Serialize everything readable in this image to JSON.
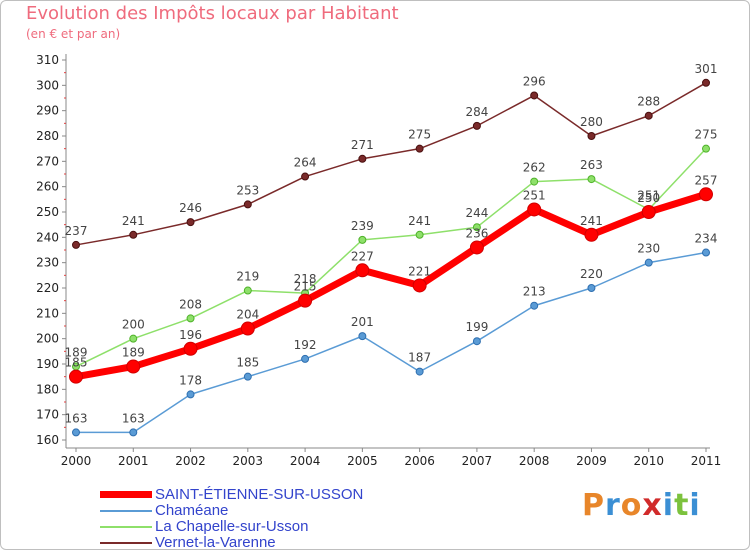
{
  "title": "Evolution des Impôts locaux par Habitant",
  "subtitle": "(en € et par an)",
  "logo": {
    "text": "Proxiti",
    "colors": [
      "#e8862a",
      "#3b8fd4",
      "#e8862a",
      "#d12b2b",
      "#3b8fd4",
      "#7cc23d",
      "#3b8fd4"
    ]
  },
  "chart_data": {
    "type": "line",
    "x": [
      2000,
      2001,
      2002,
      2003,
      2004,
      2005,
      2006,
      2007,
      2008,
      2009,
      2010,
      2011
    ],
    "ylim": [
      160,
      310
    ],
    "yticks": [
      160,
      170,
      180,
      190,
      200,
      210,
      220,
      230,
      240,
      250,
      260,
      270,
      280,
      290,
      300,
      310
    ],
    "grid": false,
    "legend_position": "bottom-left",
    "series": [
      {
        "name": "SAINT-ÉTIENNE-SUR-USSON",
        "color": "#ff0000",
        "values": [
          185,
          189,
          196,
          204,
          215,
          227,
          221,
          236,
          251,
          241,
          250,
          257
        ]
      },
      {
        "name": "Chaméane",
        "color": "#5a9bd5",
        "values": [
          163,
          163,
          178,
          185,
          192,
          201,
          187,
          199,
          213,
          220,
          230,
          234
        ]
      },
      {
        "name": "La Chapelle-sur-Usson",
        "color": "#8ee06a",
        "values": [
          189,
          200,
          208,
          219,
          218,
          239,
          241,
          244,
          262,
          263,
          251,
          275
        ]
      },
      {
        "name": "Vernet-la-Varenne",
        "color": "#7a2a2a",
        "values": [
          237,
          241,
          246,
          253,
          264,
          271,
          275,
          284,
          296,
          280,
          288,
          301
        ]
      }
    ]
  }
}
